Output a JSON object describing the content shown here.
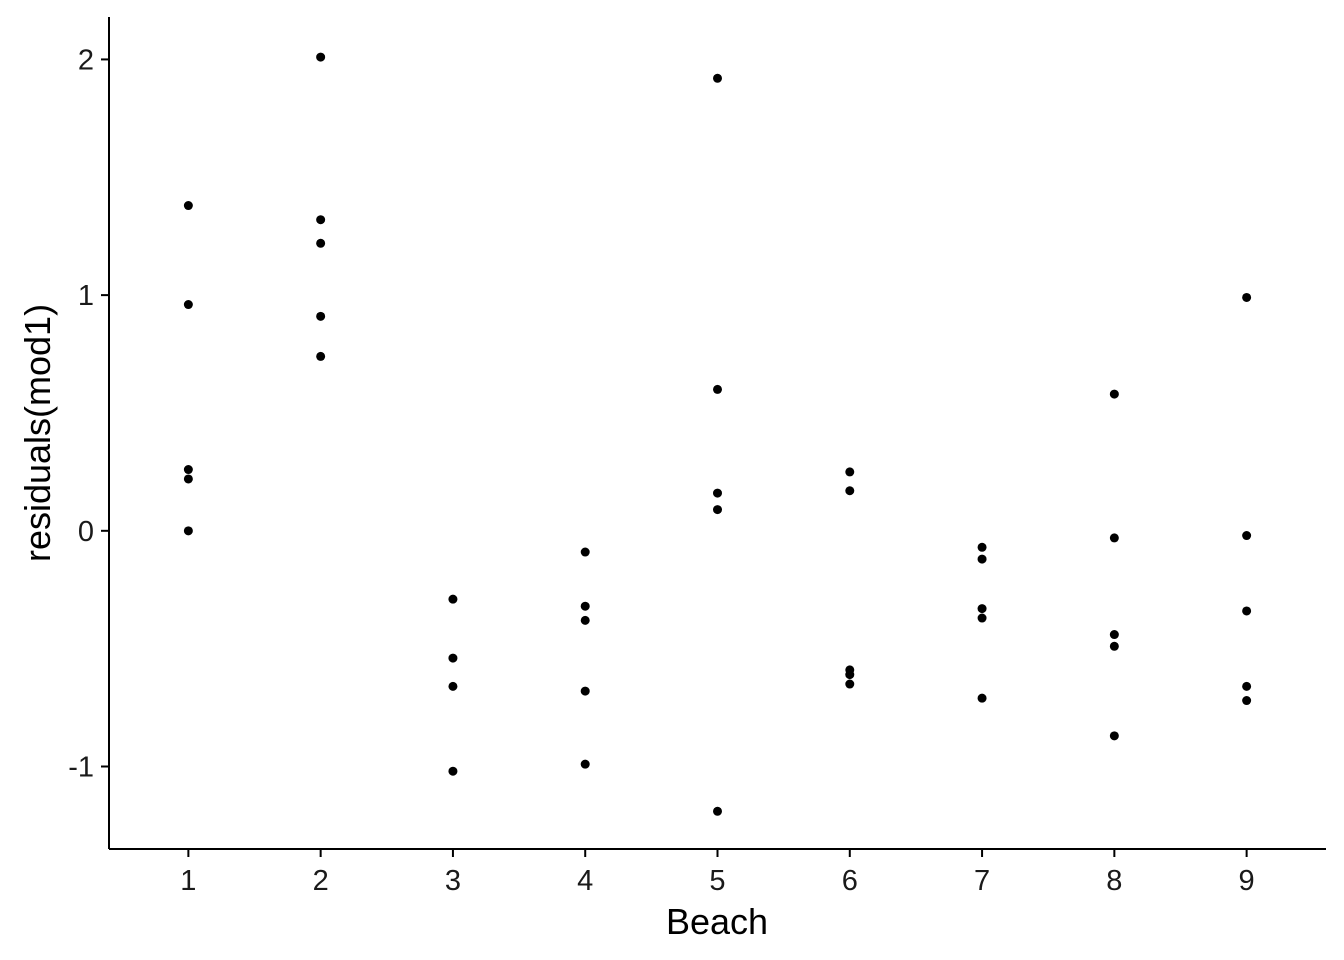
{
  "chart_data": {
    "type": "scatter",
    "title": "",
    "xlabel": "Beach",
    "ylabel": "residuals(mod1)",
    "xlim": [
      0.4,
      9.6
    ],
    "ylim": [
      -1.35,
      2.18
    ],
    "xticks": [
      1,
      2,
      3,
      4,
      5,
      6,
      7,
      8,
      9
    ],
    "xtick_labels": [
      "1",
      "2",
      "3",
      "4",
      "5",
      "6",
      "7",
      "8",
      "9"
    ],
    "yticks": [
      -1,
      0,
      1,
      2
    ],
    "ytick_labels": [
      "-1",
      "0",
      "1",
      "2"
    ],
    "grid": false,
    "point_color": "#000000",
    "points": [
      {
        "x": 1,
        "y": 1.38
      },
      {
        "x": 1,
        "y": 0.96
      },
      {
        "x": 1,
        "y": 0.26
      },
      {
        "x": 1,
        "y": 0.22
      },
      {
        "x": 1,
        "y": 0.0
      },
      {
        "x": 2,
        "y": 2.01
      },
      {
        "x": 2,
        "y": 1.32
      },
      {
        "x": 2,
        "y": 1.22
      },
      {
        "x": 2,
        "y": 0.91
      },
      {
        "x": 2,
        "y": 0.74
      },
      {
        "x": 3,
        "y": -0.29
      },
      {
        "x": 3,
        "y": -0.54
      },
      {
        "x": 3,
        "y": -0.66
      },
      {
        "x": 3,
        "y": -1.02
      },
      {
        "x": 4,
        "y": -0.09
      },
      {
        "x": 4,
        "y": -0.32
      },
      {
        "x": 4,
        "y": -0.38
      },
      {
        "x": 4,
        "y": -0.68
      },
      {
        "x": 4,
        "y": -0.99
      },
      {
        "x": 5,
        "y": 1.92
      },
      {
        "x": 5,
        "y": 0.6
      },
      {
        "x": 5,
        "y": 0.16
      },
      {
        "x": 5,
        "y": 0.09
      },
      {
        "x": 5,
        "y": -1.19
      },
      {
        "x": 6,
        "y": 0.25
      },
      {
        "x": 6,
        "y": 0.17
      },
      {
        "x": 6,
        "y": -0.59
      },
      {
        "x": 6,
        "y": -0.61
      },
      {
        "x": 6,
        "y": -0.65
      },
      {
        "x": 7,
        "y": -0.07
      },
      {
        "x": 7,
        "y": -0.12
      },
      {
        "x": 7,
        "y": -0.33
      },
      {
        "x": 7,
        "y": -0.37
      },
      {
        "x": 7,
        "y": -0.71
      },
      {
        "x": 8,
        "y": 0.58
      },
      {
        "x": 8,
        "y": -0.03
      },
      {
        "x": 8,
        "y": -0.44
      },
      {
        "x": 8,
        "y": -0.49
      },
      {
        "x": 8,
        "y": -0.87
      },
      {
        "x": 9,
        "y": 0.99
      },
      {
        "x": 9,
        "y": -0.02
      },
      {
        "x": 9,
        "y": -0.34
      },
      {
        "x": 9,
        "y": -0.66
      },
      {
        "x": 9,
        "y": -0.72
      }
    ]
  }
}
